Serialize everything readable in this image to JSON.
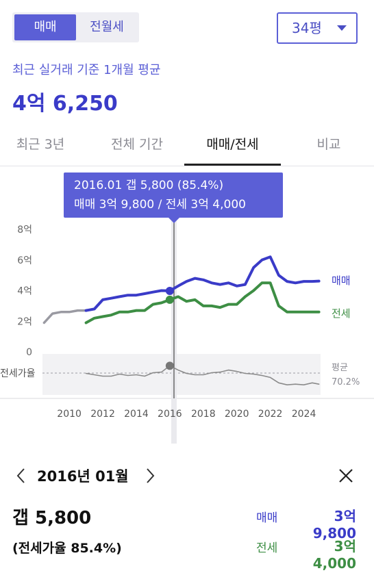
{
  "header": {
    "segment": {
      "active": "매매",
      "inactive": "전월세"
    },
    "area_select": "34평",
    "subtitle": "최근 실거래 기준 1개월 평균",
    "avg_price": "4억 6,250"
  },
  "tabs": [
    {
      "label": "최근 3년",
      "active": false
    },
    {
      "label": "전체 기간",
      "active": false
    },
    {
      "label": "매매/전세",
      "active": true
    },
    {
      "label": "비교",
      "active": false
    }
  ],
  "tooltip": {
    "line1": "2016.01  갭 5,800 (85.4%)",
    "line2": "매매 3억 9,800 / 전세 3억 4,000"
  },
  "colors": {
    "sale": "#3a3bc8",
    "jeonse": "#3d8e44",
    "ratio": "#8a8a8a",
    "accent": "#5b5fd6"
  },
  "chart_data": {
    "type": "line",
    "x_ticks": [
      "2010",
      "2012",
      "2014",
      "2016",
      "2018",
      "2020",
      "2022",
      "2024"
    ],
    "y_ticks": [
      "0",
      "2억",
      "4억",
      "6억",
      "8억"
    ],
    "y_unit": "억",
    "ylim": [
      0,
      8
    ],
    "xlim": [
      2008.4,
      2025.0
    ],
    "grid": false,
    "series": [
      {
        "name": "매매",
        "x": [
          2008.5,
          2009.0,
          2009.5,
          2010.0,
          2010.5,
          2011.0,
          2011.5,
          2012.0,
          2012.5,
          2013.0,
          2013.5,
          2014.0,
          2014.5,
          2015.0,
          2015.5,
          2016.0,
          2016.5,
          2017.0,
          2017.5,
          2018.0,
          2018.5,
          2019.0,
          2019.5,
          2020.0,
          2020.5,
          2021.0,
          2021.5,
          2022.0,
          2022.5,
          2023.0,
          2023.5,
          2024.0,
          2024.5,
          2024.9
        ],
        "values": [
          1.9,
          2.5,
          2.6,
          2.6,
          2.7,
          2.7,
          2.8,
          3.4,
          3.5,
          3.6,
          3.7,
          3.7,
          3.8,
          3.9,
          4.0,
          3.98,
          4.3,
          4.6,
          4.8,
          4.7,
          4.5,
          4.4,
          4.5,
          4.3,
          4.4,
          5.5,
          6.0,
          6.2,
          5.0,
          4.6,
          4.5,
          4.6,
          4.6,
          4.62
        ]
      },
      {
        "name": "전세",
        "x": [
          2011.0,
          2011.5,
          2012.0,
          2012.5,
          2013.0,
          2013.5,
          2014.0,
          2014.5,
          2015.0,
          2015.5,
          2016.0,
          2016.5,
          2017.0,
          2017.5,
          2018.0,
          2018.5,
          2019.0,
          2019.5,
          2020.0,
          2020.5,
          2021.0,
          2021.5,
          2022.0,
          2022.5,
          2023.0,
          2023.5,
          2024.0,
          2024.5,
          2024.9
        ],
        "values": [
          1.9,
          2.2,
          2.3,
          2.4,
          2.6,
          2.6,
          2.7,
          2.7,
          3.1,
          3.2,
          3.4,
          3.6,
          3.3,
          3.4,
          3.0,
          3.0,
          2.9,
          3.1,
          3.1,
          3.6,
          4.0,
          4.5,
          4.5,
          3.0,
          2.6,
          2.6,
          2.6,
          2.6,
          2.6
        ]
      },
      {
        "name": "전세가율",
        "x": [
          2011.0,
          2011.5,
          2012.0,
          2012.5,
          2013.0,
          2013.5,
          2014.0,
          2014.5,
          2015.0,
          2015.5,
          2016.0,
          2016.5,
          2017.0,
          2017.5,
          2018.0,
          2018.5,
          2019.0,
          2019.5,
          2020.0,
          2020.5,
          2021.0,
          2021.5,
          2022.0,
          2022.5,
          2023.0,
          2023.5,
          2024.0,
          2024.5,
          2024.9
        ],
        "values": [
          74,
          72,
          70,
          70,
          73,
          71,
          72,
          70,
          75,
          76,
          85.4,
          79,
          74,
          72,
          72,
          75,
          76,
          79,
          77,
          74,
          73,
          71,
          68,
          60,
          57,
          58,
          57,
          60,
          58
        ]
      }
    ],
    "ratio_average": {
      "label": "평균",
      "value": "70.2%"
    },
    "ratio_label": "전세가율",
    "highlight_x": 2016.0
  },
  "detail": {
    "month": "2016년 01월",
    "gap": "갭 5,800",
    "ratio": "(전세가율 85.4%)",
    "sale_label": "매매",
    "sale_value": "3억 9,800",
    "jeonse_label": "전세",
    "jeonse_value": "3억 4,000"
  }
}
